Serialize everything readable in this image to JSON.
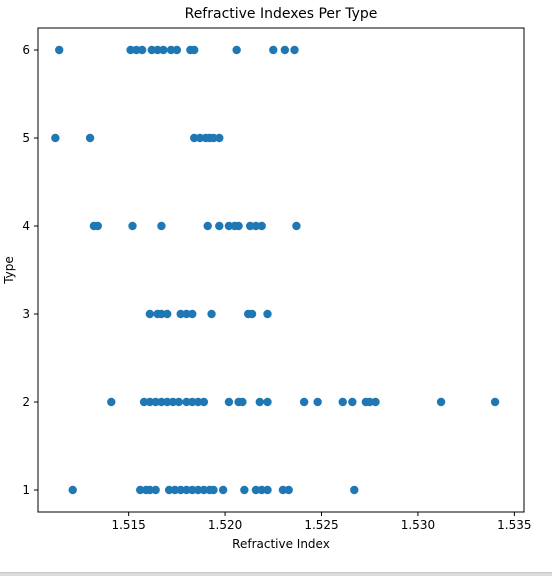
{
  "chart_data": {
    "type": "scatter",
    "title": "Refractive Indexes Per Type",
    "xlabel": "Refractive Index",
    "ylabel": "Type",
    "xlim": [
      1.5103,
      1.5355
    ],
    "ylim": [
      0.75,
      6.25
    ],
    "xticks": [
      "1.515",
      "1.520",
      "1.525",
      "1.530",
      "1.535"
    ],
    "xtick_values": [
      1.515,
      1.52,
      1.525,
      1.53,
      1.535
    ],
    "yticks": [
      "1",
      "2",
      "3",
      "4",
      "5",
      "6"
    ],
    "ytick_values": [
      1,
      2,
      3,
      4,
      5,
      6
    ],
    "grid": false,
    "marker_color": "#1f77b4",
    "points": [
      {
        "x": 1.5121,
        "y": 1
      },
      {
        "x": 1.5156,
        "y": 1
      },
      {
        "x": 1.5159,
        "y": 1
      },
      {
        "x": 1.5161,
        "y": 1
      },
      {
        "x": 1.5164,
        "y": 1
      },
      {
        "x": 1.5171,
        "y": 1
      },
      {
        "x": 1.5174,
        "y": 1
      },
      {
        "x": 1.5177,
        "y": 1
      },
      {
        "x": 1.518,
        "y": 1
      },
      {
        "x": 1.5183,
        "y": 1
      },
      {
        "x": 1.5186,
        "y": 1
      },
      {
        "x": 1.5189,
        "y": 1
      },
      {
        "x": 1.5192,
        "y": 1
      },
      {
        "x": 1.5194,
        "y": 1
      },
      {
        "x": 1.5199,
        "y": 1
      },
      {
        "x": 1.521,
        "y": 1
      },
      {
        "x": 1.5216,
        "y": 1
      },
      {
        "x": 1.5219,
        "y": 1
      },
      {
        "x": 1.5222,
        "y": 1
      },
      {
        "x": 1.523,
        "y": 1
      },
      {
        "x": 1.5233,
        "y": 1
      },
      {
        "x": 1.5267,
        "y": 1
      },
      {
        "x": 1.5141,
        "y": 2
      },
      {
        "x": 1.5158,
        "y": 2
      },
      {
        "x": 1.5161,
        "y": 2
      },
      {
        "x": 1.5164,
        "y": 2
      },
      {
        "x": 1.5167,
        "y": 2
      },
      {
        "x": 1.517,
        "y": 2
      },
      {
        "x": 1.5173,
        "y": 2
      },
      {
        "x": 1.5176,
        "y": 2
      },
      {
        "x": 1.518,
        "y": 2
      },
      {
        "x": 1.5183,
        "y": 2
      },
      {
        "x": 1.5186,
        "y": 2
      },
      {
        "x": 1.5189,
        "y": 2
      },
      {
        "x": 1.5202,
        "y": 2
      },
      {
        "x": 1.5207,
        "y": 2
      },
      {
        "x": 1.5209,
        "y": 2
      },
      {
        "x": 1.5218,
        "y": 2
      },
      {
        "x": 1.5222,
        "y": 2
      },
      {
        "x": 1.5241,
        "y": 2
      },
      {
        "x": 1.5248,
        "y": 2
      },
      {
        "x": 1.5261,
        "y": 2
      },
      {
        "x": 1.5266,
        "y": 2
      },
      {
        "x": 1.5273,
        "y": 2
      },
      {
        "x": 1.5275,
        "y": 2
      },
      {
        "x": 1.5278,
        "y": 2
      },
      {
        "x": 1.5312,
        "y": 2
      },
      {
        "x": 1.534,
        "y": 2
      },
      {
        "x": 1.5161,
        "y": 3
      },
      {
        "x": 1.5165,
        "y": 3
      },
      {
        "x": 1.5167,
        "y": 3
      },
      {
        "x": 1.517,
        "y": 3
      },
      {
        "x": 1.5177,
        "y": 3
      },
      {
        "x": 1.518,
        "y": 3
      },
      {
        "x": 1.5183,
        "y": 3
      },
      {
        "x": 1.5193,
        "y": 3
      },
      {
        "x": 1.5212,
        "y": 3
      },
      {
        "x": 1.5214,
        "y": 3
      },
      {
        "x": 1.5222,
        "y": 3
      },
      {
        "x": 1.5132,
        "y": 4
      },
      {
        "x": 1.5134,
        "y": 4
      },
      {
        "x": 1.5152,
        "y": 4
      },
      {
        "x": 1.5167,
        "y": 4
      },
      {
        "x": 1.5191,
        "y": 4
      },
      {
        "x": 1.5197,
        "y": 4
      },
      {
        "x": 1.5202,
        "y": 4
      },
      {
        "x": 1.5205,
        "y": 4
      },
      {
        "x": 1.5207,
        "y": 4
      },
      {
        "x": 1.5213,
        "y": 4
      },
      {
        "x": 1.5216,
        "y": 4
      },
      {
        "x": 1.5219,
        "y": 4
      },
      {
        "x": 1.5237,
        "y": 4
      },
      {
        "x": 1.5112,
        "y": 5
      },
      {
        "x": 1.513,
        "y": 5
      },
      {
        "x": 1.5184,
        "y": 5
      },
      {
        "x": 1.5187,
        "y": 5
      },
      {
        "x": 1.519,
        "y": 5
      },
      {
        "x": 1.5192,
        "y": 5
      },
      {
        "x": 1.5194,
        "y": 5
      },
      {
        "x": 1.5197,
        "y": 5
      },
      {
        "x": 1.5114,
        "y": 6
      },
      {
        "x": 1.5151,
        "y": 6
      },
      {
        "x": 1.5154,
        "y": 6
      },
      {
        "x": 1.5157,
        "y": 6
      },
      {
        "x": 1.5162,
        "y": 6
      },
      {
        "x": 1.5165,
        "y": 6
      },
      {
        "x": 1.5168,
        "y": 6
      },
      {
        "x": 1.5172,
        "y": 6
      },
      {
        "x": 1.5175,
        "y": 6
      },
      {
        "x": 1.5182,
        "y": 6
      },
      {
        "x": 1.5184,
        "y": 6
      },
      {
        "x": 1.5206,
        "y": 6
      },
      {
        "x": 1.5225,
        "y": 6
      },
      {
        "x": 1.5231,
        "y": 6
      },
      {
        "x": 1.5236,
        "y": 6
      }
    ]
  }
}
